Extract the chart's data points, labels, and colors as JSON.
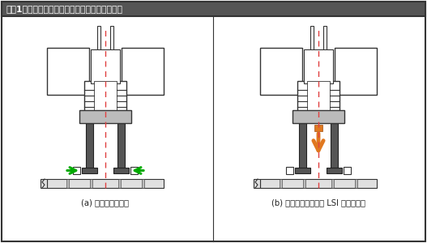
{
  "title": "『図1』複数軸を持つ電子部品の自動挙入の事例",
  "caption_a": "(a) リード部の成形",
  "caption_b": "(b) リード部成形後に LSI を自動挙入",
  "bg_color": "#ffffff",
  "border_color": "#333333",
  "dark_gray": "#555555",
  "mid_gray": "#888888",
  "light_gray": "#bbbbbb",
  "very_light_gray": "#e0e0e0",
  "green": "#00aa00",
  "orange": "#e07820",
  "red_dash": "#e04040",
  "title_bg": "#555555",
  "title_fg": "#ffffff"
}
